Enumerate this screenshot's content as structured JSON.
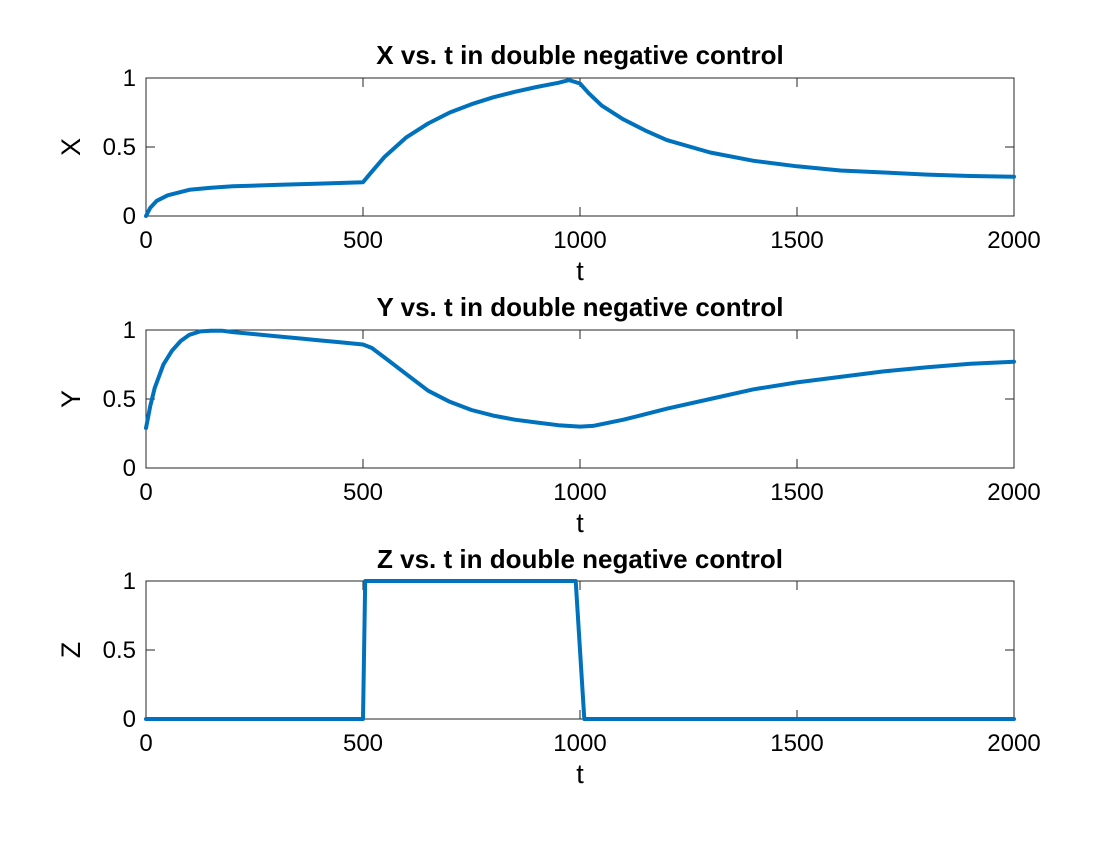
{
  "chart_data": [
    {
      "type": "line",
      "title": "X vs. t in double negative control",
      "xlabel": "t",
      "ylabel": "X",
      "xlim": [
        0,
        2000
      ],
      "ylim": [
        0,
        1
      ],
      "xticks": [
        "0",
        "500",
        "1000",
        "1500",
        "2000"
      ],
      "yticks": [
        "0",
        "0.5",
        "1"
      ],
      "grid": false,
      "color": "#0072BD",
      "series": [
        {
          "x": [
            0,
            10,
            25,
            50,
            100,
            150,
            200,
            300,
            400,
            500,
            520,
            550,
            600,
            650,
            700,
            750,
            800,
            850,
            900,
            950,
            975,
            1000,
            1020,
            1050,
            1100,
            1150,
            1200,
            1300,
            1400,
            1500,
            1600,
            1700,
            1800,
            1900,
            2000
          ],
          "y": [
            0,
            0.06,
            0.11,
            0.15,
            0.19,
            0.205,
            0.215,
            0.225,
            0.235,
            0.245,
            0.32,
            0.43,
            0.57,
            0.67,
            0.75,
            0.81,
            0.86,
            0.9,
            0.935,
            0.965,
            0.985,
            0.96,
            0.89,
            0.8,
            0.7,
            0.62,
            0.55,
            0.46,
            0.4,
            0.36,
            0.33,
            0.315,
            0.3,
            0.29,
            0.285
          ]
        }
      ]
    },
    {
      "type": "line",
      "title": "Y vs. t in double negative control",
      "xlabel": "t",
      "ylabel": "Y",
      "xlim": [
        0,
        2000
      ],
      "ylim": [
        0,
        1
      ],
      "xticks": [
        "0",
        "500",
        "1000",
        "1500",
        "2000"
      ],
      "yticks": [
        "0",
        "0.5",
        "1"
      ],
      "grid": false,
      "color": "#0072BD",
      "series": [
        {
          "x": [
            0,
            10,
            20,
            40,
            60,
            80,
            100,
            125,
            150,
            175,
            200,
            250,
            300,
            350,
            400,
            450,
            500,
            520,
            550,
            600,
            650,
            700,
            750,
            800,
            850,
            900,
            950,
            1000,
            1030,
            1100,
            1200,
            1300,
            1400,
            1500,
            1600,
            1700,
            1800,
            1900,
            2000
          ],
          "y": [
            0.29,
            0.45,
            0.58,
            0.75,
            0.85,
            0.92,
            0.965,
            0.99,
            0.995,
            0.995,
            0.985,
            0.97,
            0.955,
            0.94,
            0.925,
            0.91,
            0.895,
            0.87,
            0.8,
            0.68,
            0.56,
            0.48,
            0.42,
            0.38,
            0.35,
            0.33,
            0.31,
            0.3,
            0.305,
            0.35,
            0.43,
            0.5,
            0.57,
            0.62,
            0.66,
            0.7,
            0.73,
            0.755,
            0.77
          ]
        }
      ]
    },
    {
      "type": "line",
      "title": "Z vs. t in double negative control",
      "xlabel": "t",
      "ylabel": "Z",
      "xlim": [
        0,
        2000
      ],
      "ylim": [
        0,
        1
      ],
      "xticks": [
        "0",
        "500",
        "1000",
        "1500",
        "2000"
      ],
      "yticks": [
        "0",
        "0.5",
        "1"
      ],
      "grid": false,
      "color": "#0072BD",
      "series": [
        {
          "x": [
            0,
            500,
            505,
            990,
            1010,
            2000
          ],
          "y": [
            0,
            0,
            1,
            1,
            0,
            0
          ]
        }
      ]
    }
  ]
}
